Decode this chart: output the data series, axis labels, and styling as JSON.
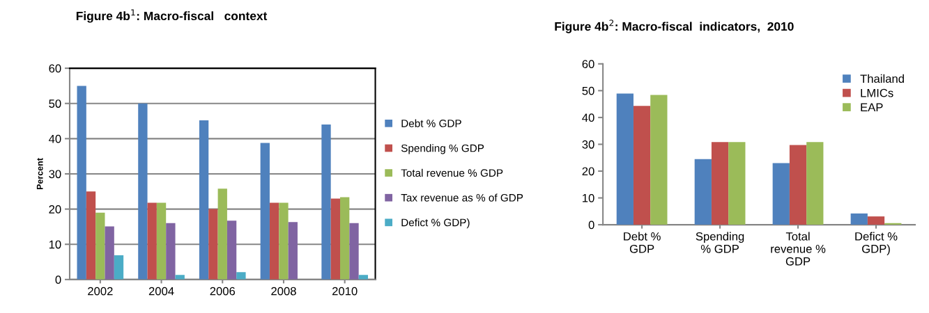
{
  "chart_data": [
    {
      "type": "bar",
      "title": "Figure 4b$^{1}$: Macro-fiscal   context",
      "ylabel": "Percent",
      "categories": [
        "2002",
        "2004",
        "2006",
        "2008",
        "2010"
      ],
      "series": [
        {
          "name": "Debt % GDP",
          "color": "#4f81bd",
          "values": [
            55,
            50,
            45.2,
            38.8,
            44
          ]
        },
        {
          "name": "Spending % GDP",
          "color": "#c0504d",
          "values": [
            25,
            21.8,
            20,
            21.8,
            23
          ]
        },
        {
          "name": "Total revenue % GDP",
          "color": "#9bbb59",
          "values": [
            19,
            21.8,
            25.8,
            21.8,
            23.4
          ]
        },
        {
          "name": "Tax revenue as % of GDP",
          "color": "#8064a2",
          "values": [
            15.1,
            16,
            16.7,
            16.3,
            16
          ]
        },
        {
          "name": "Defict % GDP)",
          "color": "#4bacc6",
          "values": [
            6.9,
            1.3,
            2.1,
            null,
            1.3
          ]
        }
      ],
      "ylim": [
        0,
        60
      ],
      "yticks": [
        0,
        10,
        20,
        30,
        40,
        50,
        60
      ],
      "grid": "y",
      "legend": "right"
    },
    {
      "type": "bar",
      "title": "Figure 4b$^{2}$: Macro-fiscal  indicators,  2010",
      "categories": [
        "Debt %\nGDP",
        "Spending\n% GDP",
        "Total\nrevenue %\nGDP",
        "Defict %\nGDP)"
      ],
      "series": [
        {
          "name": "Thailand",
          "color": "#4f81bd",
          "values": [
            48.9,
            24.5,
            23,
            4.2
          ]
        },
        {
          "name": "LMICs",
          "color": "#c0504d",
          "values": [
            44.3,
            30.8,
            29.7,
            3.1
          ]
        },
        {
          "name": "EAP",
          "color": "#9bbb59",
          "values": [
            48.4,
            30.8,
            30.8,
            0.6
          ]
        }
      ],
      "ylim": [
        0,
        60
      ],
      "yticks": [
        0,
        10,
        20,
        30,
        40,
        50,
        60
      ],
      "grid": false,
      "legend": "top right"
    }
  ]
}
